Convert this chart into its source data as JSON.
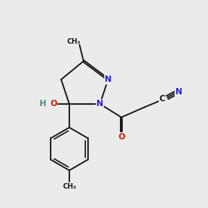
{
  "bg_color": "#ebebeb",
  "bond_color": "#1a1a1a",
  "N_color": "#2222cc",
  "O_color": "#cc2200",
  "C_color": "#1a1a1a",
  "teal_color": "#4a8a8a",
  "line_width": 1.5,
  "double_sep": 0.08,
  "triple_sep": 0.07,
  "font_size": 8.5,
  "font_size_small": 7.0,
  "xlim": [
    0,
    10
  ],
  "ylim": [
    0,
    10
  ]
}
